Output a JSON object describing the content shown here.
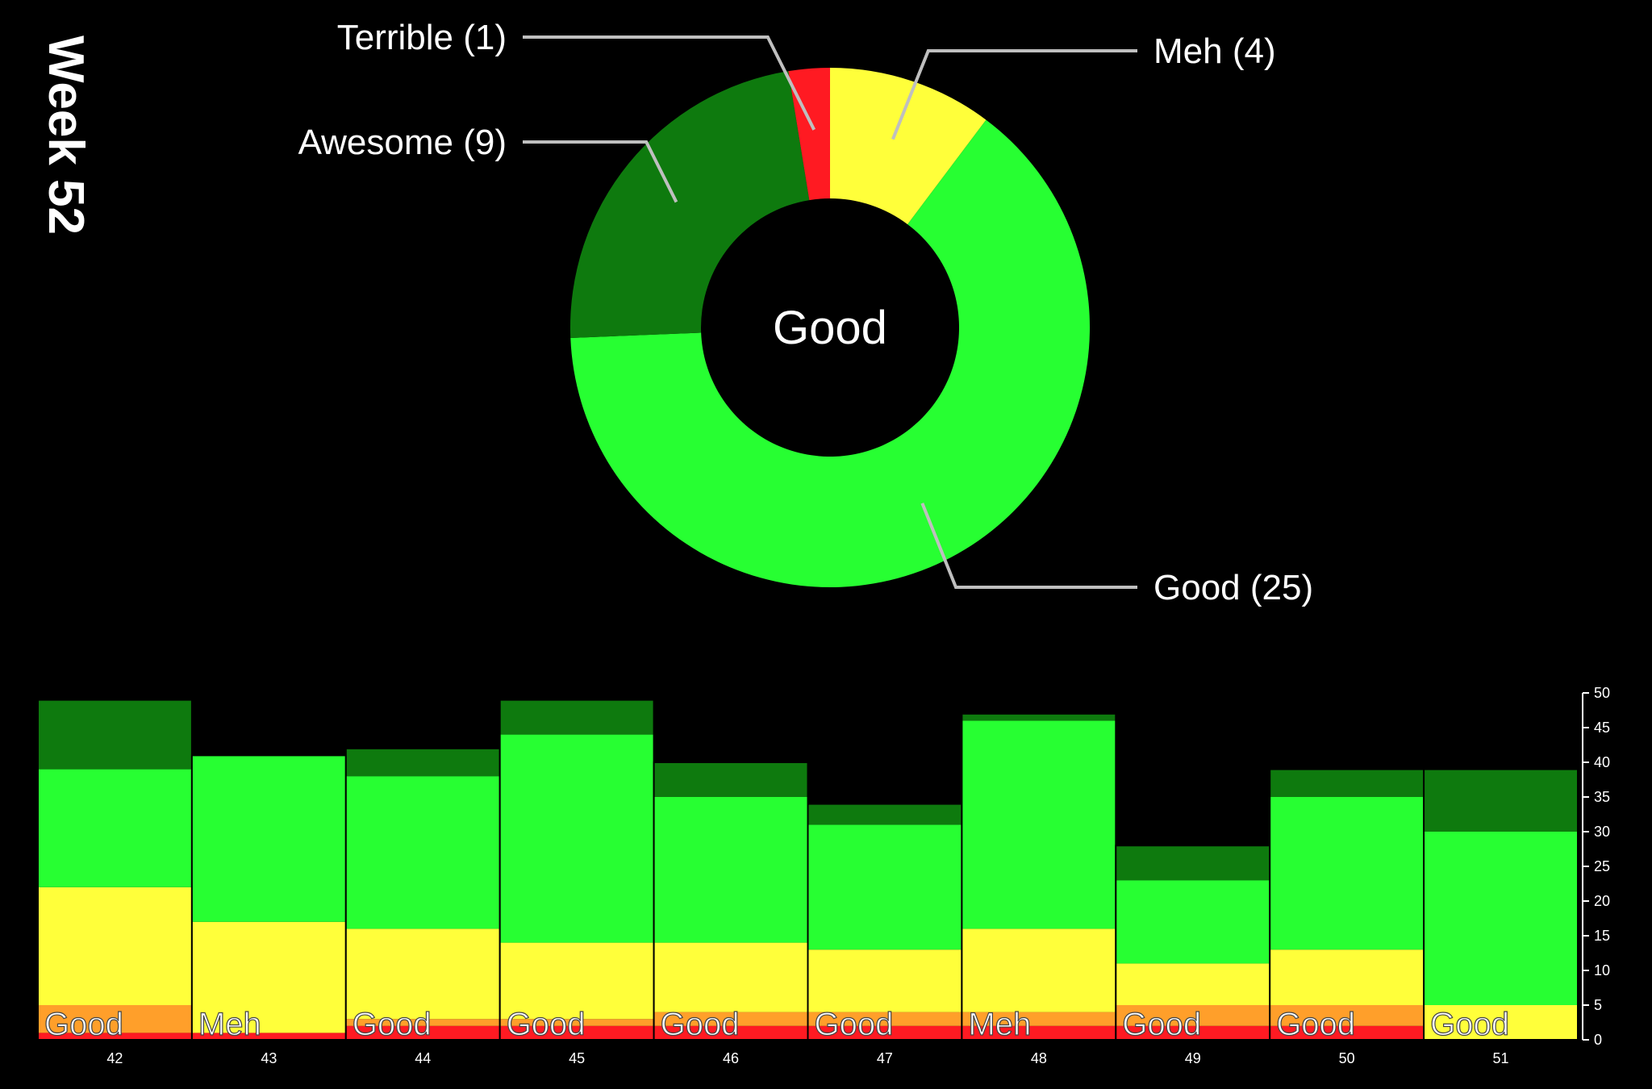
{
  "week_label": "Week 52",
  "colors": {
    "Terrible": "#ff1a22",
    "Bad": "#ff9f2a",
    "Meh": "#ffff3a",
    "Good": "#27ff32",
    "Awesome": "#0e7a0e",
    "background": "#000000",
    "leader_line": "#bfbfbf"
  },
  "chart_data": [
    {
      "type": "pie",
      "variant": "donut",
      "center_label": "Good",
      "slices": [
        {
          "key": "Meh",
          "value": 4,
          "label": "Meh (4)"
        },
        {
          "key": "Good",
          "value": 25,
          "label": "Good (25)"
        },
        {
          "key": "Awesome",
          "value": 9,
          "label": "Awesome (9)"
        },
        {
          "key": "Terrible",
          "value": 1,
          "label": "Terrible (1)"
        }
      ]
    },
    {
      "type": "bar",
      "stacked": true,
      "categories": [
        "42",
        "43",
        "44",
        "45",
        "46",
        "47",
        "48",
        "49",
        "50",
        "51"
      ],
      "bar_labels": [
        "Good",
        "Meh",
        "Good",
        "Good",
        "Good",
        "Good",
        "Meh",
        "Good",
        "Good",
        "Good"
      ],
      "series": [
        {
          "key": "Terrible",
          "values": [
            1,
            1,
            2,
            2,
            2,
            2,
            2,
            2,
            2,
            0
          ]
        },
        {
          "key": "Bad",
          "values": [
            4,
            0,
            1,
            1,
            2,
            2,
            2,
            3,
            3,
            0
          ]
        },
        {
          "key": "Meh",
          "values": [
            17,
            16,
            13,
            11,
            10,
            9,
            12,
            6,
            8,
            5
          ]
        },
        {
          "key": "Good",
          "values": [
            17,
            24,
            22,
            30,
            21,
            18,
            30,
            12,
            22,
            25
          ]
        },
        {
          "key": "Awesome",
          "values": [
            10,
            0,
            4,
            5,
            5,
            3,
            1,
            5,
            4,
            9
          ]
        }
      ],
      "ylim": [
        0,
        50
      ],
      "yticks": [
        0,
        5,
        10,
        15,
        20,
        25,
        30,
        35,
        40,
        45,
        50
      ],
      "y_axis_side": "right"
    }
  ]
}
